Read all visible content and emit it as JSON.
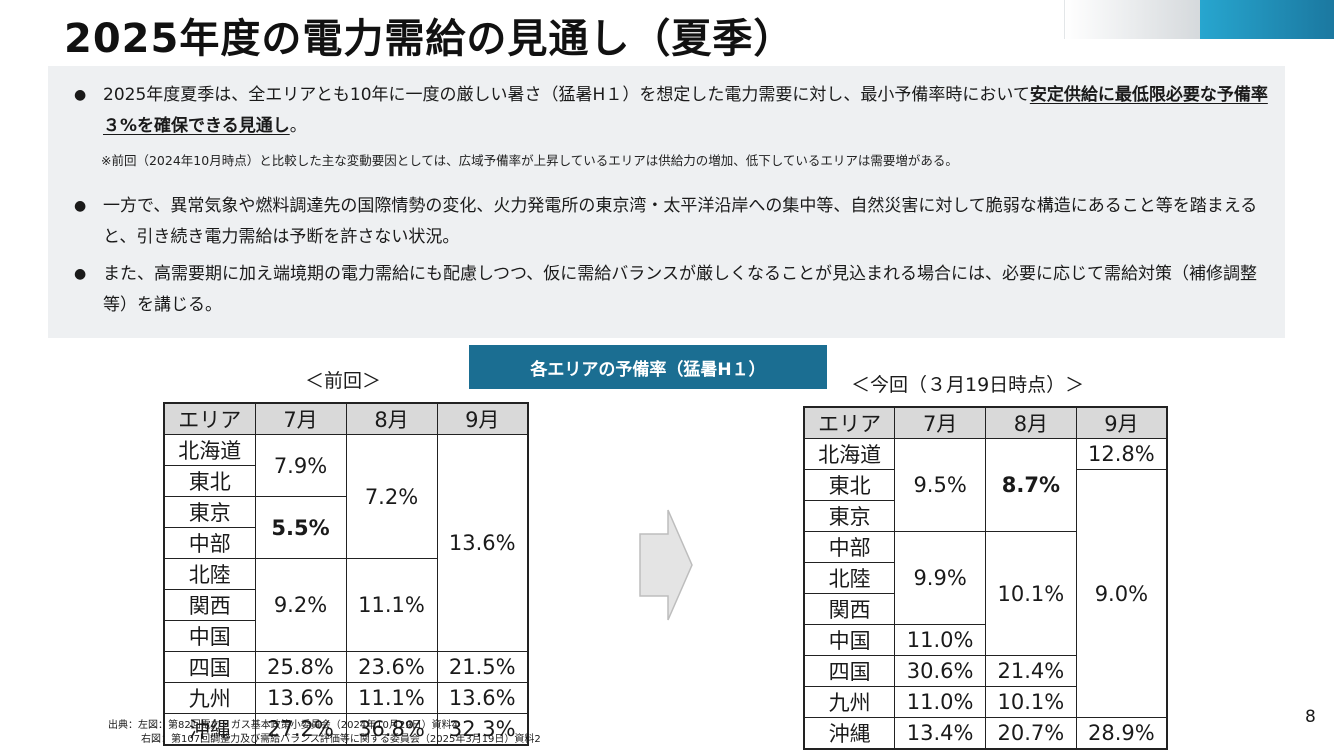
{
  "title": "2025年度の電力需給の見通し（夏季）",
  "summary": {
    "b1_text": "2025年度夏季は、全エリアとも10年に一度の厳しい暑さ（猛暑H１）を想定した電力需要に対し、最小予備率時において",
    "b1_strong": "安定供給に最低限必要な予備率３%を確保できる見通し",
    "b1_end": "。",
    "note": "※前回（2024年10月時点）と比較した主な変動要因としては、広域予備率が上昇しているエリアは供給力の増加、低下しているエリアは需要増がある。",
    "b2_text": "一方で、異常気象や燃料調達先の国際情勢の変化、火力発電所の東京湾・太平洋沿岸への集中等、自然災害に対して脆弱な構造にあること等を踏まえると、引き続き電力需給は予断を許さない状況。",
    "b3_text": "また、高需要期に加え端境期の電力需給にも配慮しつつ、仮に需給バランスが厳しくなることが見込まれる場合には、必要に応じて需給対策（補修調整等）を講じる。",
    "bullet": "●"
  },
  "center_label": "各エリアの予備率（猛暑H１）",
  "prev": {
    "heading": "＜前回＞",
    "headers": [
      "エリア",
      "7月",
      "8月",
      "9月"
    ],
    "areas": [
      "北海道",
      "東北",
      "東京",
      "中部",
      "北陸",
      "関西",
      "中国",
      "四国",
      "九州",
      "沖縄"
    ],
    "jul": [
      "7.9%",
      "5.5%",
      "9.2%",
      "25.8%",
      "13.6%",
      "27.2%"
    ],
    "aug": [
      "7.2%",
      "11.1%",
      "23.6%",
      "11.1%",
      "36.8%"
    ],
    "sep": [
      "13.6%",
      "21.5%",
      "13.6%",
      "32.3%"
    ]
  },
  "now": {
    "heading": "＜今回（３月19日時点）＞",
    "headers": [
      "エリア",
      "7月",
      "8月",
      "9月"
    ],
    "areas": [
      "北海道",
      "東北",
      "東京",
      "中部",
      "北陸",
      "関西",
      "中国",
      "四国",
      "九州",
      "沖縄"
    ],
    "jul": [
      "9.5%",
      "9.9%",
      "11.0%",
      "30.6%",
      "11.0%",
      "13.4%"
    ],
    "aug": [
      "8.7%",
      "10.1%",
      "21.4%",
      "10.1%",
      "20.7%"
    ],
    "sep": [
      "12.8%",
      "9.0%",
      "28.9%"
    ]
  },
  "source": {
    "line1": "出典：左図：第82回電力・ガス基本政策小委員会（2024年10月29日）資料4",
    "line2": "右図：第107回調整力及び需給バランス評価等に関する委員会（2025年3月19日）資料2"
  },
  "page_number": "8",
  "colors": {
    "accent_blue": "#1b6e92",
    "panel_bg": "#eef0f2",
    "header_grey": "#d9d9d9"
  },
  "icons": {
    "arrow": "right-arrow-icon"
  }
}
